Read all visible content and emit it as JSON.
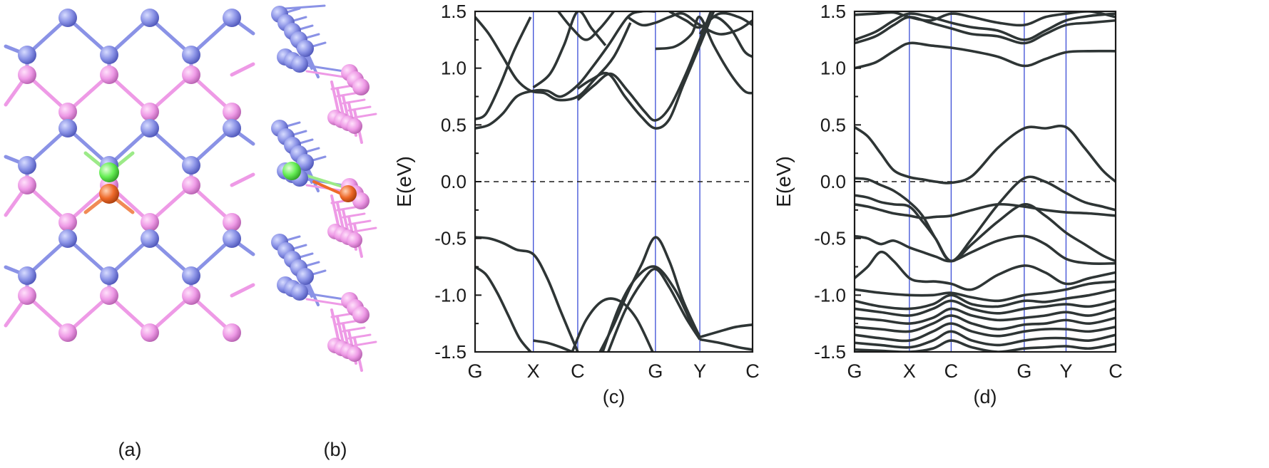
{
  "panels": {
    "a": {
      "label": "(a)",
      "atom_colors": {
        "blue": "#8a92e6",
        "pink": "#ee9ae6",
        "green": "#66ee55",
        "orange": "#ee6a2a"
      }
    },
    "b": {
      "label": "(b)"
    }
  },
  "chart_data": [
    {
      "type": "line",
      "panel_label": "(c)",
      "ylabel": "E(eV)",
      "ylim": [
        -1.5,
        1.5
      ],
      "yticks": [
        "1.5",
        "1.0",
        "0.5",
        "0.0",
        "-0.5",
        "-1.0",
        "-1.5"
      ],
      "xlim": [
        0,
        1
      ],
      "kpath_labels": [
        "G",
        "X",
        "C",
        "G",
        "Y",
        "C"
      ],
      "kpath_positions": [
        0,
        0.21,
        0.37,
        0.65,
        0.81,
        1.0
      ],
      "fermi_level": 0.0,
      "line_color": "#2e3535",
      "kline_color": "#3a4cd6",
      "series": [
        {
          "name": "v1",
          "x": [
            0,
            0.05,
            0.1,
            0.15,
            0.21,
            0.26,
            0.31,
            0.37
          ],
          "y": [
            -0.49,
            -0.5,
            -0.54,
            -0.6,
            -0.64,
            -0.85,
            -1.15,
            -1.5
          ]
        },
        {
          "name": "v2",
          "x": [
            0,
            0.04,
            0.08,
            0.12,
            0.16,
            0.2
          ],
          "y": [
            -0.75,
            -0.82,
            -0.98,
            -1.18,
            -1.38,
            -1.5
          ]
        },
        {
          "name": "v3",
          "x": [
            0.45,
            0.5,
            0.55,
            0.6,
            0.65,
            0.7,
            0.75,
            0.81
          ],
          "y": [
            -1.5,
            -1.26,
            -0.98,
            -0.73,
            -0.49,
            -0.7,
            -1.05,
            -1.37
          ]
        },
        {
          "name": "v4",
          "x": [
            0.46,
            0.52,
            0.58,
            0.65,
            0.72,
            0.78,
            0.81
          ],
          "y": [
            -1.5,
            -1.1,
            -0.85,
            -0.75,
            -0.95,
            -1.25,
            -1.38
          ]
        },
        {
          "name": "v5",
          "x": [
            0.48,
            0.54,
            0.6,
            0.65,
            0.7,
            0.76,
            0.81
          ],
          "y": [
            -1.5,
            -1.14,
            -0.89,
            -0.77,
            -0.93,
            -1.2,
            -1.39
          ]
        },
        {
          "name": "v6",
          "x": [
            0.35,
            0.4,
            0.46,
            0.52,
            0.58,
            0.64
          ],
          "y": [
            -1.5,
            -1.22,
            -1.05,
            -1.05,
            -1.2,
            -1.5
          ]
        },
        {
          "name": "v7",
          "x": [
            0.81,
            0.88,
            0.94,
            1.0
          ],
          "y": [
            -1.37,
            -1.32,
            -1.28,
            -1.26
          ]
        },
        {
          "name": "v8",
          "x": [
            0.81,
            0.88,
            0.95,
            1.0
          ],
          "y": [
            -1.39,
            -1.42,
            -1.46,
            -1.48
          ]
        },
        {
          "name": "v9",
          "x": [
            0.21,
            0.26,
            0.31,
            0.35
          ],
          "y": [
            -1.4,
            -1.42,
            -1.46,
            -1.5
          ]
        },
        {
          "name": "c1",
          "x": [
            0,
            0.05,
            0.1,
            0.15,
            0.21,
            0.26,
            0.31,
            0.37,
            0.42,
            0.48,
            0.55,
            0.6,
            0.65
          ],
          "y": [
            0.47,
            0.5,
            0.6,
            0.75,
            0.8,
            0.8,
            0.75,
            0.85,
            1.0,
            1.2,
            1.45,
            1.5,
            1.5
          ]
        },
        {
          "name": "c2",
          "x": [
            0,
            0.04,
            0.09,
            0.14,
            0.2
          ],
          "y": [
            0.55,
            0.6,
            0.85,
            1.15,
            1.45
          ]
        },
        {
          "name": "c3",
          "x": [
            0,
            0.05,
            0.1,
            0.15,
            0.2,
            0.25,
            0.3,
            0.37,
            0.43,
            0.5,
            0.56
          ],
          "y": [
            1.45,
            1.3,
            1.1,
            0.9,
            0.8,
            0.78,
            0.72,
            0.75,
            0.9,
            1.1,
            1.4
          ]
        },
        {
          "name": "c4",
          "x": [
            0.37,
            0.42,
            0.48,
            0.54,
            0.6,
            0.65,
            0.7,
            0.75,
            0.81,
            0.86
          ],
          "y": [
            0.82,
            0.9,
            0.95,
            0.75,
            0.57,
            0.47,
            0.55,
            0.85,
            1.2,
            1.5
          ]
        },
        {
          "name": "c5",
          "x": [
            0.37,
            0.43,
            0.49,
            0.55,
            0.61,
            0.65,
            0.7,
            0.76,
            0.81,
            0.85
          ],
          "y": [
            0.72,
            0.85,
            0.95,
            0.8,
            0.62,
            0.54,
            0.65,
            0.95,
            1.25,
            1.5
          ]
        },
        {
          "name": "c6",
          "x": [
            0.21,
            0.27,
            0.32,
            0.37,
            0.42,
            0.47
          ],
          "y": [
            0.83,
            0.95,
            1.2,
            1.5,
            1.35,
            1.2
          ]
        },
        {
          "name": "c7",
          "x": [
            0.65,
            0.72,
            0.78,
            0.81,
            0.86,
            0.92,
            0.97,
            1.0
          ],
          "y": [
            1.17,
            1.19,
            1.3,
            1.45,
            1.2,
            0.95,
            0.8,
            0.78
          ]
        },
        {
          "name": "c8",
          "x": [
            0.81,
            0.86,
            0.92,
            0.97,
            1.0
          ],
          "y": [
            1.3,
            1.45,
            1.35,
            1.15,
            1.1
          ]
        },
        {
          "name": "c9",
          "x": [
            0.55,
            0.6,
            0.65,
            0.7,
            0.75,
            0.81,
            0.88,
            0.95,
            1.0
          ],
          "y": [
            1.45,
            1.38,
            1.4,
            1.45,
            1.48,
            1.38,
            1.3,
            1.34,
            1.42
          ]
        },
        {
          "name": "c10",
          "x": [
            0.7,
            0.76,
            0.81,
            0.88,
            0.95,
            1.0
          ],
          "y": [
            1.5,
            1.42,
            1.36,
            1.48,
            1.45,
            1.38
          ]
        },
        {
          "name": "c11",
          "x": [
            0.3,
            0.35,
            0.4,
            0.45,
            0.5
          ],
          "y": [
            1.5,
            1.35,
            1.25,
            1.35,
            1.5
          ]
        }
      ]
    },
    {
      "type": "line",
      "panel_label": "(d)",
      "ylabel": "E(eV)",
      "ylim": [
        -1.5,
        1.5
      ],
      "yticks": [
        "1.5",
        "1.0",
        "0.5",
        "0.0",
        "-0.5",
        "-1.0",
        "-1.5"
      ],
      "xlim": [
        0,
        1
      ],
      "kpath_labels": [
        "G",
        "X",
        "C",
        "G",
        "Y",
        "C"
      ],
      "kpath_positions": [
        0,
        0.21,
        0.37,
        0.65,
        0.81,
        1.0
      ],
      "fermi_level": 0.0,
      "line_color": "#2e3535",
      "kline_color": "#3a4cd6",
      "series": [
        {
          "name": "b1",
          "x": [
            0,
            0.05,
            0.1,
            0.15,
            0.21,
            0.26,
            0.31,
            0.37,
            0.45,
            0.55,
            0.65,
            0.73,
            0.81,
            0.88,
            0.95,
            1.0
          ],
          "y": [
            0.48,
            0.4,
            0.25,
            0.1,
            0.04,
            0.02,
            0.0,
            -0.01,
            0.05,
            0.3,
            0.47,
            0.47,
            0.48,
            0.3,
            0.1,
            0.0
          ]
        },
        {
          "name": "b2",
          "x": [
            0,
            0.05,
            0.1,
            0.15,
            0.21,
            0.26,
            0.31,
            0.37,
            0.45,
            0.55,
            0.65,
            0.73,
            0.81,
            0.88,
            0.95,
            1.0
          ],
          "y": [
            0.03,
            0.02,
            -0.03,
            -0.08,
            -0.18,
            -0.3,
            -0.5,
            -0.7,
            -0.5,
            -0.2,
            0.03,
            0.0,
            -0.1,
            -0.18,
            -0.22,
            -0.25
          ]
        },
        {
          "name": "b3",
          "x": [
            0,
            0.05,
            0.1,
            0.15,
            0.21,
            0.26,
            0.31,
            0.37,
            0.45,
            0.55,
            0.65,
            0.73,
            0.81,
            0.88,
            0.95,
            1.0
          ],
          "y": [
            -0.12,
            -0.14,
            -0.18,
            -0.2,
            -0.22,
            -0.35,
            -0.5,
            -0.7,
            -0.55,
            -0.35,
            -0.2,
            -0.3,
            -0.45,
            -0.55,
            -0.65,
            -0.7
          ]
        },
        {
          "name": "b4",
          "x": [
            0,
            0.05,
            0.1,
            0.15,
            0.21,
            0.26,
            0.31,
            0.37,
            0.45,
            0.55,
            0.65,
            0.73,
            0.81,
            0.9,
            1.0
          ],
          "y": [
            -0.2,
            -0.22,
            -0.25,
            -0.28,
            -0.3,
            -0.32,
            -0.31,
            -0.3,
            -0.25,
            -0.2,
            -0.22,
            -0.25,
            -0.27,
            -0.28,
            -0.3
          ]
        },
        {
          "name": "b5",
          "x": [
            0,
            0.05,
            0.1,
            0.15,
            0.21,
            0.26,
            0.31,
            0.37,
            0.45,
            0.55,
            0.65,
            0.73,
            0.81,
            0.9,
            1.0
          ],
          "y": [
            -0.48,
            -0.5,
            -0.55,
            -0.52,
            -0.58,
            -0.62,
            -0.66,
            -0.7,
            -0.62,
            -0.52,
            -0.48,
            -0.55,
            -0.68,
            -0.72,
            -0.72
          ]
        },
        {
          "name": "b6",
          "x": [
            0,
            0.05,
            0.1,
            0.15,
            0.21,
            0.26,
            0.31,
            0.37,
            0.45,
            0.55,
            0.65,
            0.73,
            0.81,
            0.9,
            1.0
          ],
          "y": [
            -0.85,
            -0.75,
            -0.62,
            -0.7,
            -0.85,
            -0.88,
            -0.88,
            -0.9,
            -0.95,
            -0.82,
            -0.74,
            -0.8,
            -0.9,
            -0.85,
            -0.8
          ]
        },
        {
          "name": "b7",
          "x": [
            0,
            0.1,
            0.21,
            0.3,
            0.37,
            0.45,
            0.55,
            0.65,
            0.73,
            0.81,
            0.9,
            1.0
          ],
          "y": [
            -0.95,
            -0.98,
            -1.0,
            -1.0,
            -0.98,
            -1.02,
            -1.05,
            -1.0,
            -0.98,
            -0.95,
            -0.9,
            -0.88
          ]
        },
        {
          "name": "b8",
          "x": [
            0,
            0.1,
            0.21,
            0.3,
            0.37,
            0.45,
            0.55,
            0.65,
            0.73,
            0.81,
            0.9,
            1.0
          ],
          "y": [
            -1.05,
            -1.1,
            -1.12,
            -1.08,
            -1.0,
            -1.08,
            -1.1,
            -1.05,
            -1.06,
            -1.03,
            -1.0,
            -0.95
          ]
        },
        {
          "name": "b9",
          "x": [
            0,
            0.1,
            0.21,
            0.3,
            0.37,
            0.45,
            0.55,
            0.65,
            0.73,
            0.81,
            0.9,
            1.0
          ],
          "y": [
            -1.12,
            -1.15,
            -1.18,
            -1.12,
            -1.05,
            -1.12,
            -1.16,
            -1.12,
            -1.1,
            -1.08,
            -1.1,
            -1.05
          ]
        },
        {
          "name": "b10",
          "x": [
            0,
            0.1,
            0.21,
            0.3,
            0.37,
            0.45,
            0.55,
            0.65,
            0.73,
            0.81,
            0.9,
            1.0
          ],
          "y": [
            -1.2,
            -1.22,
            -1.25,
            -1.2,
            -1.12,
            -1.18,
            -1.22,
            -1.2,
            -1.18,
            -1.15,
            -1.18,
            -1.12
          ]
        },
        {
          "name": "b11",
          "x": [
            0,
            0.1,
            0.21,
            0.3,
            0.37,
            0.45,
            0.55,
            0.65,
            0.73,
            0.81,
            0.9,
            1.0
          ],
          "y": [
            -1.28,
            -1.3,
            -1.32,
            -1.25,
            -1.18,
            -1.25,
            -1.3,
            -1.26,
            -1.25,
            -1.22,
            -1.25,
            -1.2
          ]
        },
        {
          "name": "b12",
          "x": [
            0,
            0.1,
            0.21,
            0.3,
            0.37,
            0.45,
            0.55,
            0.65,
            0.73,
            0.81,
            0.9,
            1.0
          ],
          "y": [
            -1.35,
            -1.38,
            -1.4,
            -1.32,
            -1.25,
            -1.32,
            -1.36,
            -1.32,
            -1.3,
            -1.3,
            -1.32,
            -1.28
          ]
        },
        {
          "name": "b13",
          "x": [
            0,
            0.1,
            0.21,
            0.3,
            0.37,
            0.45,
            0.55,
            0.65,
            0.73,
            0.81,
            0.9,
            1.0
          ],
          "y": [
            -1.42,
            -1.44,
            -1.46,
            -1.4,
            -1.32,
            -1.4,
            -1.44,
            -1.4,
            -1.38,
            -1.38,
            -1.4,
            -1.35
          ]
        },
        {
          "name": "b14",
          "x": [
            0,
            0.1,
            0.21,
            0.3,
            0.37,
            0.45,
            0.55,
            0.65,
            0.73,
            0.81,
            0.9,
            1.0
          ],
          "y": [
            -1.48,
            -1.49,
            -1.5,
            -1.47,
            -1.4,
            -1.46,
            -1.5,
            -1.47,
            -1.46,
            -1.45,
            -1.47,
            -1.43
          ]
        },
        {
          "name": "b15",
          "x": [
            0,
            0.08,
            0.15,
            0.21,
            0.29,
            0.37,
            0.45,
            0.55,
            0.65,
            0.73,
            0.81,
            0.9,
            1.0
          ],
          "y": [
            1.0,
            1.05,
            1.15,
            1.22,
            1.2,
            1.18,
            1.15,
            1.1,
            1.02,
            1.08,
            1.14,
            1.15,
            1.15
          ]
        },
        {
          "name": "b16",
          "x": [
            0,
            0.08,
            0.15,
            0.21,
            0.29,
            0.37,
            0.45,
            0.55,
            0.65,
            0.73,
            0.81,
            0.9,
            1.0
          ],
          "y": [
            1.22,
            1.28,
            1.38,
            1.45,
            1.4,
            1.35,
            1.3,
            1.28,
            1.22,
            1.3,
            1.38,
            1.4,
            1.42
          ]
        },
        {
          "name": "b17",
          "x": [
            0,
            0.08,
            0.15,
            0.21,
            0.29,
            0.37,
            0.45,
            0.55,
            0.65,
            0.73,
            0.81,
            0.9,
            1.0
          ],
          "y": [
            1.25,
            1.32,
            1.42,
            1.48,
            1.45,
            1.4,
            1.36,
            1.33,
            1.25,
            1.33,
            1.42,
            1.46,
            1.48
          ]
        },
        {
          "name": "b18",
          "x": [
            0,
            0.08,
            0.15,
            0.21,
            0.29,
            0.37,
            0.45,
            0.55,
            0.65,
            0.73,
            0.81,
            0.9,
            1.0
          ],
          "y": [
            1.47,
            1.48,
            1.49,
            1.45,
            1.42,
            1.48,
            1.45,
            1.4,
            1.38,
            1.45,
            1.48,
            1.5,
            1.45
          ]
        }
      ]
    }
  ]
}
